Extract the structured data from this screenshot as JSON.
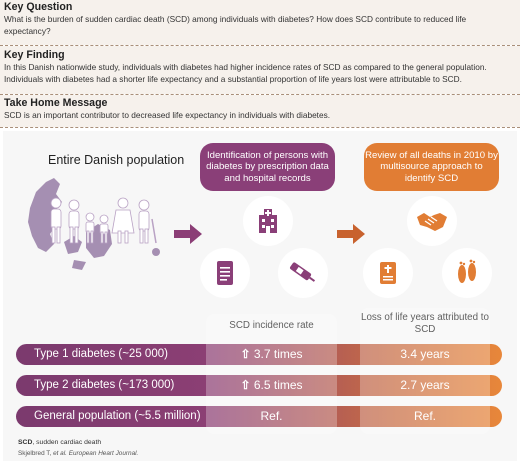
{
  "key_question": {
    "heading": "Key Question",
    "text": "What is the burden of sudden cardiac death (SCD) among individuals with diabetes? How does SCD contribute to reduced life expectancy?"
  },
  "key_finding": {
    "heading": "Key Finding",
    "text": "In this Danish nationwide study, individuals with diabetes had higher incidence rates of SCD as compared to the general population. Individuals with diabetes had a shorter life expectancy and a substantial proportion of life years lost were attributable to SCD."
  },
  "take_home": {
    "heading": "Take Home Message",
    "text": "SCD is an important contributor to decreased life expectancy in individuals with diabetes."
  },
  "graphic": {
    "population_label": "Entire Danish population",
    "step_identification": "Identification of persons with diabetes by prescription data and hospital records",
    "step_review": "Review of all deaths in 2010 by multisource approach to identify SCD",
    "icons": [
      "denmark-map",
      "family",
      "hospital",
      "document",
      "insulin-pen",
      "handshake",
      "death-certificate",
      "footprints"
    ],
    "col_incidence_header": "SCD incidence rate",
    "col_lifeyears_header": "Loss of life years attributed to SCD",
    "rows": [
      {
        "label": "Type 1 diabetes (~25 000)",
        "incidence": "3.7 times",
        "arrow": true,
        "lifeyears": "3.4 years",
        "color_from": "#7b3a6e",
        "color_to": "#e8873a"
      },
      {
        "label": "Type 2 diabetes (~173 000)",
        "incidence": "6.5 times",
        "arrow": true,
        "lifeyears": "2.7 years",
        "color_from": "#7b3a6e",
        "color_to": "#e8873a"
      },
      {
        "label": "General population (~5.5 million)",
        "incidence": "Ref.",
        "arrow": false,
        "lifeyears": "Ref.",
        "color_from": "#7b3a6e",
        "color_to": "#e8873a"
      }
    ]
  },
  "footer": {
    "abbrev_term": "SCD",
    "abbrev_def": ", sudden cardiac death",
    "citation_authors": "Skjelbred T, ",
    "citation_etal": "et al.",
    "citation_journal": "European Heart Journal."
  },
  "colors": {
    "plum": "#8a3f78",
    "plum_dark": "#6e2f60",
    "orange": "#e17d34",
    "map_purple": "#9a83a8",
    "arrow": "#8b3e76"
  }
}
